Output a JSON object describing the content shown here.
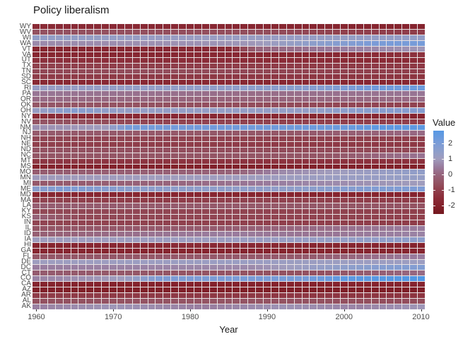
{
  "title": "Policy liberalism",
  "chart_data": {
    "type": "heatmap",
    "title": "Policy liberalism",
    "xlabel": "Year",
    "x_range": [
      1960,
      2010
    ],
    "x_ticks": [
      1960,
      1970,
      1980,
      1990,
      2000,
      2010
    ],
    "y_categories_top_to_bottom": [
      "WY",
      "WV",
      "WI",
      "WA",
      "VT",
      "VA",
      "UT",
      "TX",
      "TN",
      "SD",
      "SC",
      "RI",
      "PA",
      "OR",
      "OK",
      "OH",
      "NY",
      "NV",
      "NM",
      "NJ",
      "NH",
      "NE",
      "ND",
      "NC",
      "MT",
      "MS",
      "MO",
      "MN",
      "MI",
      "ME",
      "MD",
      "MA",
      "LA",
      "KY",
      "KS",
      "IN",
      "IL",
      "ID",
      "IA",
      "HI",
      "GA",
      "FL",
      "DE",
      "DC",
      "CT",
      "CO",
      "CA",
      "AZ",
      "AR",
      "AL",
      "AK"
    ],
    "legend": {
      "title": "Value",
      "ticks": [
        2,
        1,
        0,
        -1,
        -2
      ],
      "top_value": 2.8,
      "bottom_value": -2.55
    },
    "color_anchors": [
      [
        -2.6,
        "#73171e"
      ],
      [
        -2.0,
        "#84222c"
      ],
      [
        -1.5,
        "#8b2d39"
      ],
      [
        -1.0,
        "#90404d"
      ],
      [
        -0.5,
        "#945565"
      ],
      [
        0.0,
        "#97657d"
      ],
      [
        0.5,
        "#997d9f"
      ],
      [
        1.0,
        "#a09dbe"
      ],
      [
        1.5,
        "#8d9ecb"
      ],
      [
        2.0,
        "#7b9cd7"
      ],
      [
        2.5,
        "#639ae0"
      ],
      [
        3.0,
        "#4d97e6"
      ]
    ],
    "series": {
      "WY": [
        [
          1960,
          -1.6
        ],
        [
          2010,
          -1.9
        ]
      ],
      "WV": [
        [
          1960,
          -0.6
        ],
        [
          1990,
          -0.7
        ],
        [
          2000,
          -1.0
        ],
        [
          2010,
          -1.1
        ]
      ],
      "WI": [
        [
          1960,
          1.35
        ],
        [
          1982,
          1.15
        ],
        [
          2010,
          1.35
        ]
      ],
      "WA": [
        [
          1960,
          0.7
        ],
        [
          1988,
          0.9
        ],
        [
          1996,
          1.5
        ],
        [
          2004,
          2.0
        ],
        [
          2010,
          2.1
        ]
      ],
      "VT": [
        [
          1960,
          -1.8
        ],
        [
          1985,
          -1.6
        ],
        [
          1989,
          0.0
        ],
        [
          2000,
          0.5
        ],
        [
          2010,
          0.9
        ]
      ],
      "VA": [
        [
          1960,
          -1.8
        ],
        [
          2000,
          -1.7
        ],
        [
          2010,
          -1.35
        ]
      ],
      "UT": [
        [
          1960,
          -1.4
        ],
        [
          2010,
          -1.6
        ]
      ],
      "TX": [
        [
          1960,
          -1.0
        ],
        [
          2010,
          -1.2
        ]
      ],
      "TN": [
        [
          1960,
          -0.85
        ],
        [
          1975,
          -0.65
        ],
        [
          1995,
          -0.9
        ],
        [
          2010,
          -1.05
        ]
      ],
      "SD": [
        [
          1960,
          -1.1
        ],
        [
          2010,
          -1.3
        ]
      ],
      "SC": [
        [
          1960,
          -1.7
        ],
        [
          2010,
          -1.8
        ]
      ],
      "RI": [
        [
          1960,
          1.2
        ],
        [
          1985,
          1.4
        ],
        [
          1997,
          1.7
        ],
        [
          2004,
          2.2
        ],
        [
          2010,
          2.3
        ]
      ],
      "PA": [
        [
          1960,
          0.35
        ],
        [
          1988,
          0.15
        ],
        [
          2010,
          0.35
        ]
      ],
      "OR": [
        [
          1960,
          0.15
        ],
        [
          1985,
          -0.05
        ],
        [
          2010,
          0.15
        ]
      ],
      "OK": [
        [
          1960,
          -0.45
        ],
        [
          1990,
          -0.7
        ],
        [
          2010,
          -0.95
        ]
      ],
      "OH": [
        [
          1960,
          1.2
        ],
        [
          1965,
          1.7
        ],
        [
          1971,
          1.3
        ],
        [
          1995,
          1.3
        ],
        [
          2003,
          1.6
        ],
        [
          2010,
          1.7
        ]
      ],
      "NY": [
        [
          1960,
          -1.6
        ],
        [
          1985,
          -1.75
        ],
        [
          2010,
          -1.85
        ]
      ],
      "NV": [
        [
          1960,
          -0.5
        ],
        [
          1976,
          -0.9
        ],
        [
          2010,
          -1.05
        ]
      ],
      "NM": [
        [
          1960,
          0.8
        ],
        [
          1969,
          1.0
        ],
        [
          1972,
          2.1
        ],
        [
          1990,
          2.2
        ],
        [
          2000,
          2.3
        ],
        [
          2005,
          2.6
        ],
        [
          2010,
          2.6
        ]
      ],
      "NJ": [
        [
          1960,
          -0.35
        ],
        [
          1992,
          -0.45
        ],
        [
          2004,
          -0.1
        ],
        [
          2010,
          0.1
        ]
      ],
      "NH": [
        [
          1960,
          -0.85
        ],
        [
          2010,
          -1.0
        ]
      ],
      "NE": [
        [
          1960,
          -1.0
        ],
        [
          2010,
          -1.2
        ]
      ],
      "ND": [
        [
          1960,
          -0.55
        ],
        [
          2010,
          -0.8
        ]
      ],
      "NC": [
        [
          1960,
          -0.5
        ],
        [
          1998,
          -0.5
        ],
        [
          2006,
          0.1
        ],
        [
          2010,
          0.3
        ]
      ],
      "MT": [
        [
          1960,
          -1.25
        ],
        [
          2010,
          -1.4
        ]
      ],
      "MS": [
        [
          1960,
          -2.0
        ],
        [
          1985,
          -2.1
        ],
        [
          2010,
          -2.1
        ]
      ],
      "MO": [
        [
          1960,
          -0.3
        ],
        [
          1986,
          -0.1
        ],
        [
          1992,
          0.7
        ],
        [
          2001,
          1.1
        ],
        [
          2010,
          1.4
        ]
      ],
      "MN": [
        [
          1960,
          0.95
        ],
        [
          1990,
          1.05
        ],
        [
          2010,
          1.3
        ]
      ],
      "MI": [
        [
          1960,
          -0.4
        ],
        [
          1978,
          0.0
        ],
        [
          1994,
          0.6
        ],
        [
          2010,
          1.0
        ]
      ],
      "ME": [
        [
          1960,
          1.6
        ],
        [
          1964,
          1.9
        ],
        [
          1974,
          1.5
        ],
        [
          1992,
          1.4
        ],
        [
          2003,
          1.8
        ],
        [
          2010,
          1.9
        ]
      ],
      "MD": [
        [
          1960,
          -1.75
        ],
        [
          2010,
          -1.9
        ]
      ],
      "MA": [
        [
          1960,
          -0.9
        ],
        [
          1975,
          -1.1
        ],
        [
          1990,
          -0.9
        ],
        [
          2010,
          -1.1
        ]
      ],
      "LA": [
        [
          1960,
          -0.25
        ],
        [
          1990,
          -0.4
        ],
        [
          2010,
          -0.55
        ]
      ],
      "KY": [
        [
          1960,
          -0.8
        ],
        [
          2010,
          -1.0
        ]
      ],
      "KS": [
        [
          1960,
          -0.1
        ],
        [
          1966,
          -0.8
        ],
        [
          2010,
          -1.0
        ]
      ],
      "IN": [
        [
          1960,
          -0.9
        ],
        [
          2010,
          -1.1
        ]
      ],
      "IL": [
        [
          1960,
          -0.5
        ],
        [
          1984,
          -0.3
        ],
        [
          1996,
          0.1
        ],
        [
          2010,
          0.5
        ]
      ],
      "ID": [
        [
          1960,
          -0.2
        ],
        [
          1972,
          0.2
        ],
        [
          1984,
          0.5
        ],
        [
          1996,
          0.3
        ],
        [
          2010,
          0.6
        ]
      ],
      "IA": [
        [
          1960,
          1.0
        ],
        [
          1985,
          1.1
        ],
        [
          2000,
          1.3
        ],
        [
          2010,
          1.5
        ]
      ],
      "HI": [
        [
          1960,
          -1.9
        ],
        [
          1980,
          -1.6
        ],
        [
          1995,
          -1.8
        ],
        [
          2010,
          -1.9
        ]
      ],
      "GA": [
        [
          1960,
          -1.8
        ],
        [
          1985,
          -1.9
        ],
        [
          2010,
          -1.85
        ]
      ],
      "FL": [
        [
          1960,
          -0.45
        ],
        [
          1995,
          -0.35
        ],
        [
          2004,
          0.2
        ],
        [
          2010,
          0.5
        ]
      ],
      "DE": [
        [
          1960,
          1.05
        ],
        [
          1985,
          1.15
        ],
        [
          2010,
          1.1
        ]
      ],
      "DC": [
        [
          1960,
          0.5
        ],
        [
          1988,
          0.7
        ],
        [
          1997,
          1.3
        ],
        [
          2005,
          1.7
        ],
        [
          2010,
          1.8
        ]
      ],
      "CT": [
        [
          1960,
          -0.3
        ],
        [
          1985,
          -0.55
        ],
        [
          1997,
          -0.6
        ],
        [
          2006,
          -0.1
        ],
        [
          2010,
          0.1
        ]
      ],
      "CO": [
        [
          1960,
          0.6
        ],
        [
          1971,
          1.0
        ],
        [
          1976,
          1.9
        ],
        [
          1995,
          2.1
        ],
        [
          2000,
          2.6
        ],
        [
          2010,
          2.9
        ]
      ],
      "CA": [
        [
          1960,
          -1.9
        ],
        [
          1980,
          -2.0
        ],
        [
          2010,
          -1.9
        ]
      ],
      "AZ": [
        [
          1960,
          -2.1
        ],
        [
          2010,
          -2.2
        ]
      ],
      "AR": [
        [
          1960,
          -1.1
        ],
        [
          2010,
          -1.3
        ]
      ],
      "AL": [
        [
          1960,
          -0.6
        ],
        [
          1985,
          -0.5
        ],
        [
          2010,
          -0.7
        ]
      ],
      "AK": [
        [
          1960,
          0.55
        ],
        [
          1970,
          0.9
        ],
        [
          1982,
          0.5
        ],
        [
          1992,
          0.85
        ],
        [
          2002,
          0.6
        ],
        [
          2010,
          0.9
        ]
      ]
    }
  }
}
